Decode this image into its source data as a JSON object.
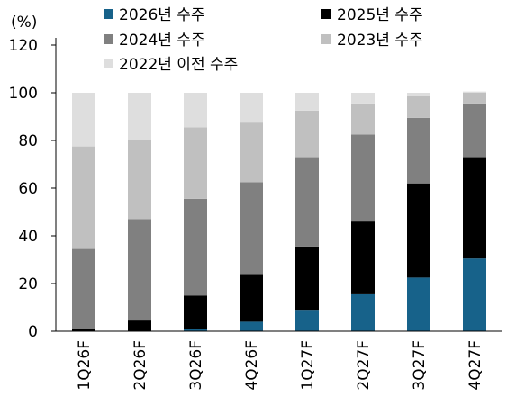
{
  "chart_data": {
    "type": "bar",
    "stacked": true,
    "unit_label": "(%)",
    "categories": [
      "1Q26F",
      "2Q26F",
      "3Q26F",
      "4Q26F",
      "1Q27F",
      "2Q27F",
      "3Q27F",
      "4Q27F"
    ],
    "series": [
      {
        "name": "2026년 수주",
        "color": "#17628a",
        "values": [
          0,
          0,
          1,
          4,
          9,
          15.5,
          22.5,
          30.5
        ]
      },
      {
        "name": "2025년 수주",
        "color": "#000000",
        "values": [
          1,
          4.5,
          14,
          20,
          26.5,
          30.5,
          39.5,
          42.5
        ]
      },
      {
        "name": "2024년 수주",
        "color": "#808080",
        "values": [
          33.5,
          42.5,
          40.5,
          38.5,
          37.5,
          36.5,
          27.5,
          22.5
        ]
      },
      {
        "name": "2023년 수주",
        "color": "#c0c0c0",
        "values": [
          43,
          33,
          30,
          25,
          19.5,
          13,
          9,
          4.5
        ]
      },
      {
        "name": "2022년 이전 수주",
        "color": "#dedede",
        "values": [
          22.5,
          20,
          14.5,
          12.5,
          7.5,
          4.5,
          1.5,
          0.5
        ]
      }
    ],
    "ylim": [
      0,
      120
    ],
    "yticks": [
      0,
      20,
      40,
      60,
      80,
      100,
      120
    ],
    "xlabel": "",
    "ylabel": "",
    "legend_position": "top",
    "grid": false
  }
}
